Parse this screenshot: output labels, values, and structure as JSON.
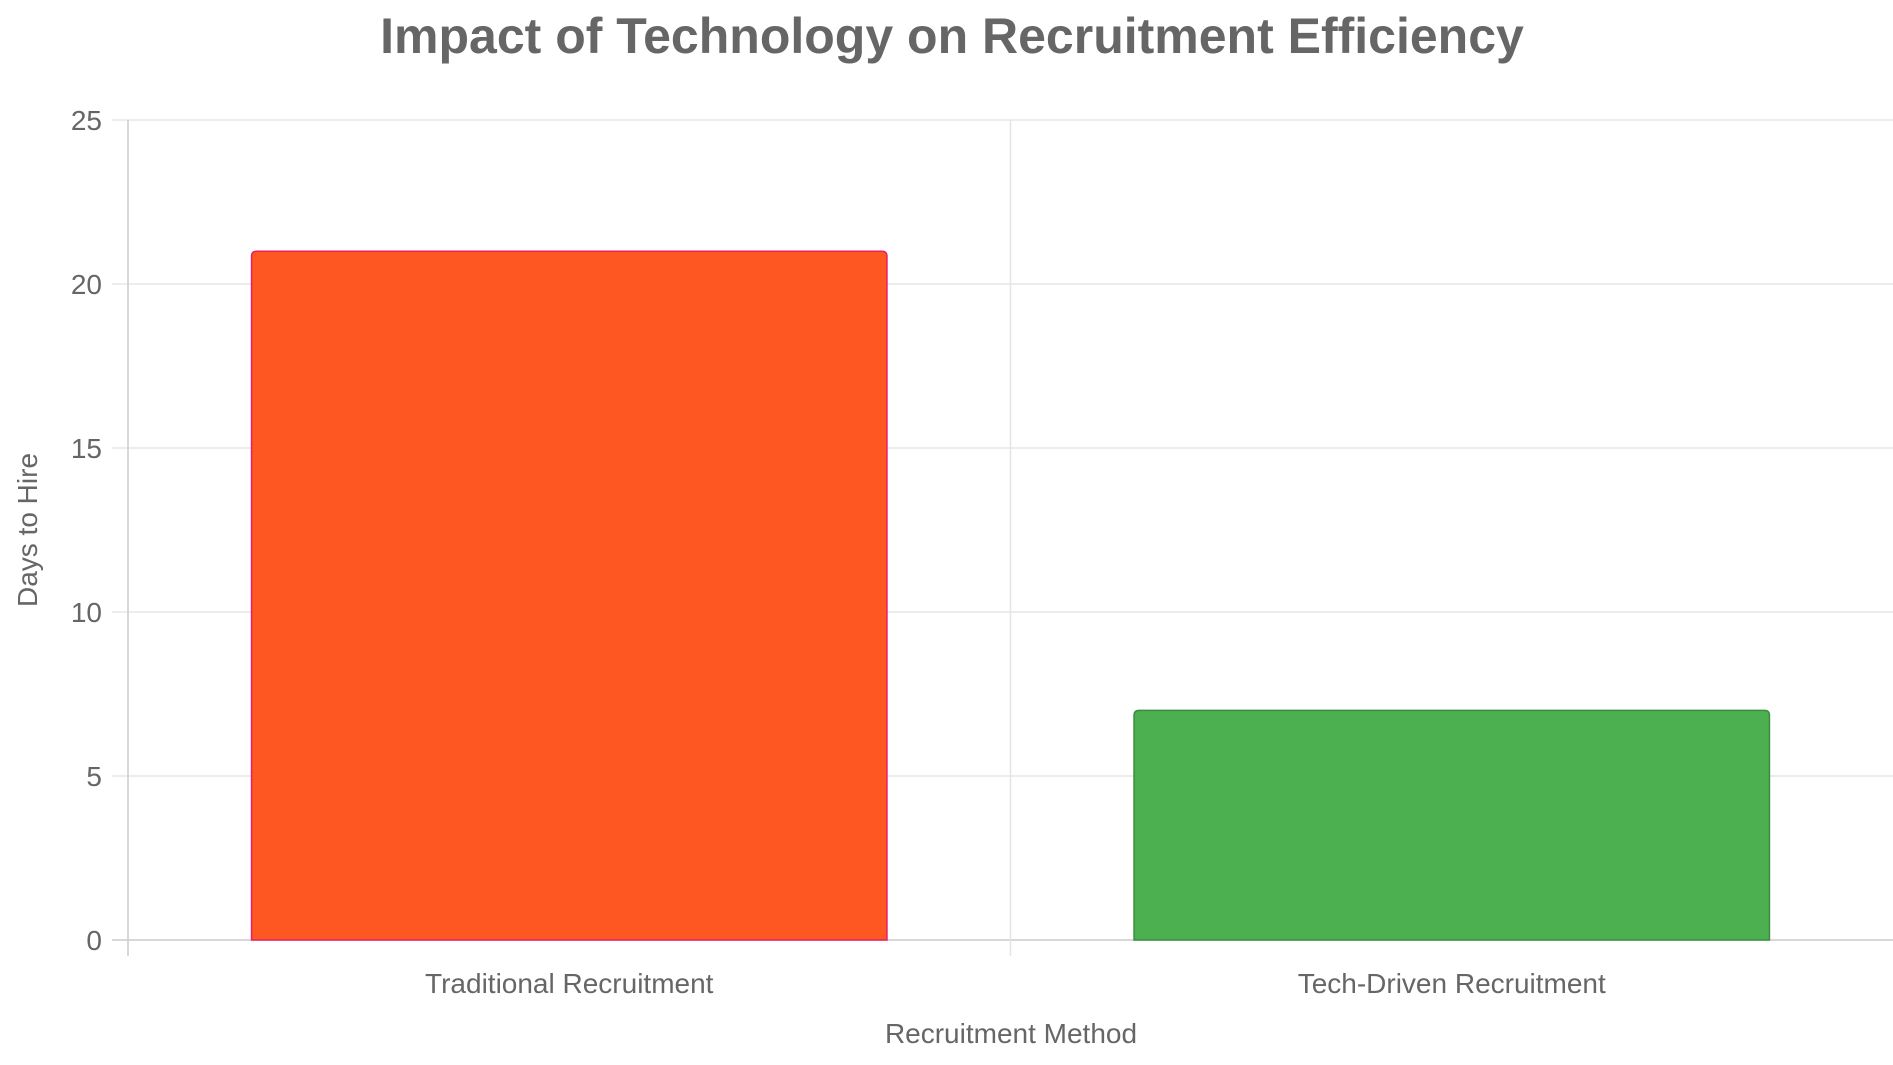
{
  "chart_data": {
    "type": "bar",
    "title": "Impact of Technology on Recruitment Efficiency",
    "xlabel": "Recruitment Method",
    "ylabel": "Days to Hire",
    "categories": [
      "Traditional Recruitment",
      "Tech-Driven Recruitment"
    ],
    "values": [
      21,
      7
    ],
    "colors": [
      "#FF5722",
      "#4CAF50"
    ],
    "border_colors": [
      "#E91E63",
      "#388E3C"
    ],
    "ylim": [
      0,
      25
    ],
    "yticks": [
      "0",
      "5",
      "10",
      "15",
      "20",
      "25"
    ],
    "grid": true,
    "legend": "none"
  }
}
